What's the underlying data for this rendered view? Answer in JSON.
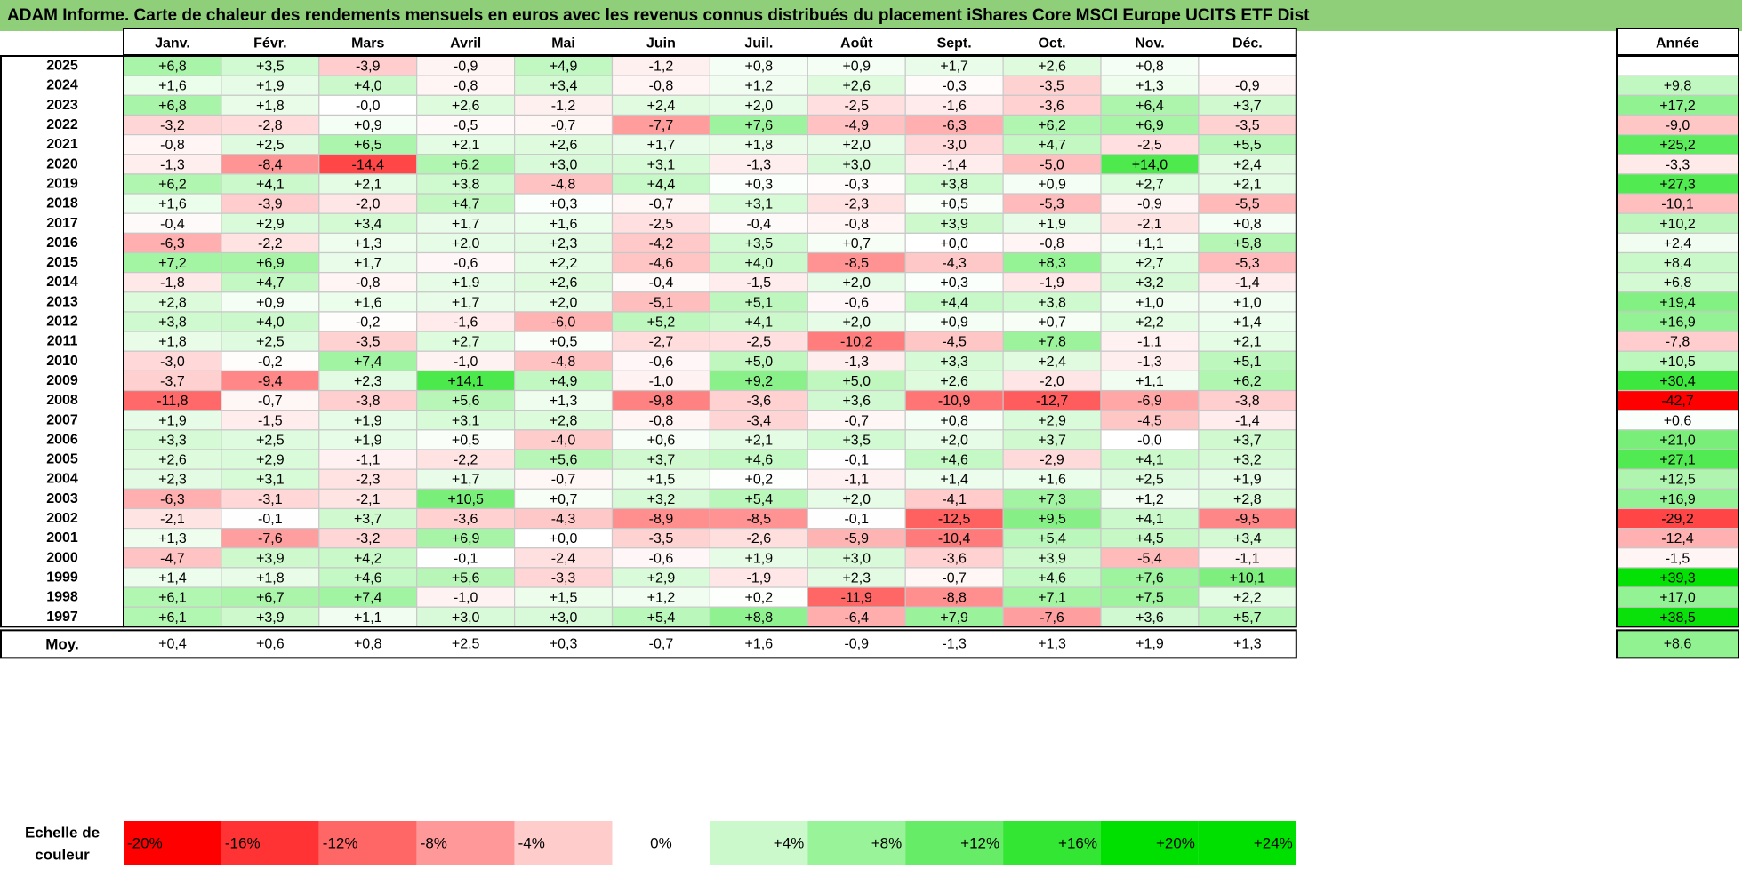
{
  "title": "ADAM Informe. Carte de chaleur des rendements mensuels en euros avec les revenus connus distribués du placement iShares Core MSCI Europe UCITS ETF Dist",
  "chart_data": {
    "type": "heatmap",
    "months": [
      "Janv.",
      "Févr.",
      "Mars",
      "Avril",
      "Mai",
      "Juin",
      "Juil.",
      "Août",
      "Sept.",
      "Oct.",
      "Nov.",
      "Déc."
    ],
    "year_header": "Année",
    "years": [
      "2025",
      "2024",
      "2023",
      "2022",
      "2021",
      "2020",
      "2019",
      "2018",
      "2017",
      "2016",
      "2015",
      "2014",
      "2013",
      "2012",
      "2011",
      "2010",
      "2009",
      "2008",
      "2007",
      "2006",
      "2005",
      "2004",
      "2003",
      "2002",
      "2001",
      "2000",
      "1999",
      "1998",
      "1997"
    ],
    "values": [
      [
        "+6,8",
        "+3,5",
        "-3,9",
        "-0,9",
        "+4,9",
        "-1,2",
        "+0,8",
        "+0,9",
        "+1,7",
        "+2,6",
        "+0,8",
        ""
      ],
      [
        "+1,6",
        "+1,9",
        "+4,0",
        "-0,8",
        "+3,4",
        "-0,8",
        "+1,2",
        "+2,6",
        "-0,3",
        "-3,5",
        "+1,3",
        "-0,9"
      ],
      [
        "+6,8",
        "+1,8",
        "-0,0",
        "+2,6",
        "-1,2",
        "+2,4",
        "+2,0",
        "-2,5",
        "-1,6",
        "-3,6",
        "+6,4",
        "+3,7"
      ],
      [
        "-3,2",
        "-2,8",
        "+0,9",
        "-0,5",
        "-0,7",
        "-7,7",
        "+7,6",
        "-4,9",
        "-6,3",
        "+6,2",
        "+6,9",
        "-3,5"
      ],
      [
        "-0,8",
        "+2,5",
        "+6,5",
        "+2,1",
        "+2,6",
        "+1,7",
        "+1,8",
        "+2,0",
        "-3,0",
        "+4,7",
        "-2,5",
        "+5,5"
      ],
      [
        "-1,3",
        "-8,4",
        "-14,4",
        "+6,2",
        "+3,0",
        "+3,1",
        "-1,3",
        "+3,0",
        "-1,4",
        "-5,0",
        "+14,0",
        "+2,4"
      ],
      [
        "+6,2",
        "+4,1",
        "+2,1",
        "+3,8",
        "-4,8",
        "+4,4",
        "+0,3",
        "-0,3",
        "+3,8",
        "+0,9",
        "+2,7",
        "+2,1"
      ],
      [
        "+1,6",
        "-3,9",
        "-2,0",
        "+4,7",
        "+0,3",
        "-0,7",
        "+3,1",
        "-2,3",
        "+0,5",
        "-5,3",
        "-0,9",
        "-5,5"
      ],
      [
        "-0,4",
        "+2,9",
        "+3,4",
        "+1,7",
        "+1,6",
        "-2,5",
        "-0,4",
        "-0,8",
        "+3,9",
        "+1,9",
        "-2,1",
        "+0,8"
      ],
      [
        "-6,3",
        "-2,2",
        "+1,3",
        "+2,0",
        "+2,3",
        "-4,2",
        "+3,5",
        "+0,7",
        "+0,0",
        "-0,8",
        "+1,1",
        "+5,8"
      ],
      [
        "+7,2",
        "+6,9",
        "+1,7",
        "-0,6",
        "+2,2",
        "-4,6",
        "+4,0",
        "-8,5",
        "-4,3",
        "+8,3",
        "+2,7",
        "-5,3"
      ],
      [
        "-1,8",
        "+4,7",
        "-0,8",
        "+1,9",
        "+2,6",
        "-0,4",
        "-1,5",
        "+2,0",
        "+0,3",
        "-1,9",
        "+3,2",
        "-1,4"
      ],
      [
        "+2,8",
        "+0,9",
        "+1,6",
        "+1,7",
        "+2,0",
        "-5,1",
        "+5,1",
        "-0,6",
        "+4,4",
        "+3,8",
        "+1,0",
        "+1,0"
      ],
      [
        "+3,8",
        "+4,0",
        "-0,2",
        "-1,6",
        "-6,0",
        "+5,2",
        "+4,1",
        "+2,0",
        "+0,9",
        "+0,7",
        "+2,2",
        "+1,4"
      ],
      [
        "+1,8",
        "+2,5",
        "-3,5",
        "+2,7",
        "+0,5",
        "-2,7",
        "-2,5",
        "-10,2",
        "-4,5",
        "+7,8",
        "-1,1",
        "+2,1"
      ],
      [
        "-3,0",
        "-0,2",
        "+7,4",
        "-1,0",
        "-4,8",
        "-0,6",
        "+5,0",
        "-1,3",
        "+3,3",
        "+2,4",
        "-1,3",
        "+5,1"
      ],
      [
        "-3,7",
        "-9,4",
        "+2,3",
        "+14,1",
        "+4,9",
        "-1,0",
        "+9,2",
        "+5,0",
        "+2,6",
        "-2,0",
        "+1,1",
        "+6,2"
      ],
      [
        "-11,8",
        "-0,7",
        "-3,8",
        "+5,6",
        "+1,3",
        "-9,8",
        "-3,6",
        "+3,6",
        "-10,9",
        "-12,7",
        "-6,9",
        "-3,8"
      ],
      [
        "+1,9",
        "-1,5",
        "+1,9",
        "+3,1",
        "+2,8",
        "-0,8",
        "-3,4",
        "-0,7",
        "+0,8",
        "+2,9",
        "-4,5",
        "-1,4"
      ],
      [
        "+3,3",
        "+2,5",
        "+1,9",
        "+0,5",
        "-4,0",
        "+0,6",
        "+2,1",
        "+3,5",
        "+2,0",
        "+3,7",
        "-0,0",
        "+3,7"
      ],
      [
        "+2,6",
        "+2,9",
        "-1,1",
        "-2,2",
        "+5,6",
        "+3,7",
        "+4,6",
        "-0,1",
        "+4,6",
        "-2,9",
        "+4,1",
        "+3,2"
      ],
      [
        "+2,3",
        "+3,1",
        "-2,3",
        "+1,7",
        "-0,7",
        "+1,5",
        "+0,2",
        "-1,1",
        "+1,4",
        "+1,6",
        "+2,5",
        "+1,9"
      ],
      [
        "-6,3",
        "-3,1",
        "-2,1",
        "+10,5",
        "+0,7",
        "+3,2",
        "+5,4",
        "+2,0",
        "-4,1",
        "+7,3",
        "+1,2",
        "+2,8"
      ],
      [
        "-2,1",
        "-0,1",
        "+3,7",
        "-3,6",
        "-4,3",
        "-8,9",
        "-8,5",
        "-0,1",
        "-12,5",
        "+9,5",
        "+4,1",
        "-9,5"
      ],
      [
        "+1,3",
        "-7,6",
        "-3,2",
        "+6,9",
        "+0,0",
        "-3,5",
        "-2,6",
        "-5,9",
        "-10,4",
        "+5,4",
        "+4,5",
        "+3,4"
      ],
      [
        "-4,7",
        "+3,9",
        "+4,2",
        "-0,1",
        "-2,4",
        "-0,6",
        "+1,9",
        "+3,0",
        "-3,6",
        "+3,9",
        "-5,4",
        "-1,1"
      ],
      [
        "+1,4",
        "+1,8",
        "+4,6",
        "+5,6",
        "-3,3",
        "+2,9",
        "-1,9",
        "+2,3",
        "-0,7",
        "+4,6",
        "+7,6",
        "+10,1"
      ],
      [
        "+6,1",
        "+6,7",
        "+7,4",
        "-1,0",
        "+1,5",
        "+1,2",
        "+0,2",
        "-11,9",
        "-8,8",
        "+7,1",
        "+7,5",
        "+2,2"
      ],
      [
        "+6,1",
        "+3,9",
        "+1,1",
        "+3,0",
        "+3,0",
        "+5,4",
        "+8,8",
        "-6,4",
        "+7,9",
        "-7,6",
        "+3,6",
        "+5,7"
      ]
    ],
    "annual": [
      "",
      "+9,8",
      "+17,2",
      "-9,0",
      "+25,2",
      "-3,3",
      "+27,3",
      "-10,1",
      "+10,2",
      "+2,4",
      "+8,4",
      "+6,8",
      "+19,4",
      "+16,9",
      "-7,8",
      "+10,5",
      "+30,4",
      "-42,7",
      "+0,6",
      "+21,0",
      "+27,1",
      "+12,5",
      "+16,9",
      "-29,2",
      "-12,4",
      "-1,5",
      "+39,3",
      "+17,0",
      "+38,5"
    ],
    "average_label": "Moy.",
    "average": [
      "+0,4",
      "+0,6",
      "+0,8",
      "+2,5",
      "+0,3",
      "-0,7",
      "+1,6",
      "-0,9",
      "-1,3",
      "+1,3",
      "+1,9",
      "+1,3"
    ],
    "average_annual": "+8,6",
    "scale_label": "Echelle de couleur",
    "scale": [
      {
        "label": "-20%",
        "value": -20
      },
      {
        "label": "-16%",
        "value": -16
      },
      {
        "label": "-12%",
        "value": -12
      },
      {
        "label": "-8%",
        "value": -8
      },
      {
        "label": "-4%",
        "value": -4
      },
      {
        "label": "0%",
        "value": 0
      },
      {
        "label": "+4%",
        "value": 4
      },
      {
        "label": "+8%",
        "value": 8
      },
      {
        "label": "+12%",
        "value": 12
      },
      {
        "label": "+16%",
        "value": 16
      },
      {
        "label": "+20%",
        "value": 20
      },
      {
        "label": "+24%",
        "value": 24
      }
    ],
    "colors": {
      "negative_max": "#ff0000",
      "neutral": "#ffffff",
      "positive_max": "#00e000",
      "title_bg": "#8fcf7a"
    }
  }
}
